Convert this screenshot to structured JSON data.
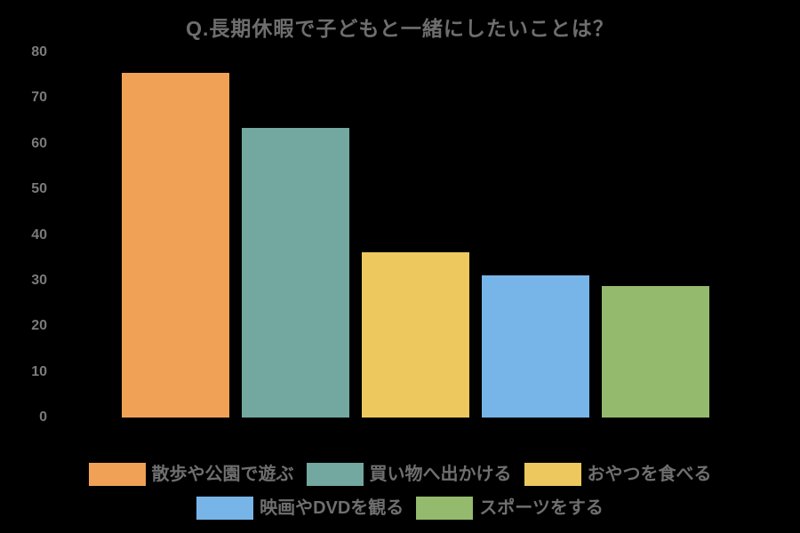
{
  "page": {
    "background_color": "#000000"
  },
  "chart_data": {
    "type": "bar",
    "title": "Q.長期休暇で子どもと一緒にしたいことは？",
    "categories": [
      "散歩や公園で遊ぶ",
      "買い物へ出かける",
      "おやつを食べる",
      "映画やDVDを観る",
      "スポーツをする"
    ],
    "values": [
      75.5,
      63.5,
      36.3,
      31.2,
      28.9
    ],
    "bar_colors": [
      "#f0a156",
      "#72a8a0",
      "#ecc85e",
      "#77b5e8",
      "#94ba6d"
    ],
    "xlabel": "",
    "ylabel": "",
    "ylim": [
      0,
      80
    ],
    "yticks": [
      0,
      10,
      20,
      30,
      40,
      50,
      60,
      70,
      80
    ],
    "grid": false,
    "legend_position": "bottom",
    "legend_row_split": [
      3,
      2
    ],
    "text_colors": {
      "title": "#6e6e6e",
      "tick_labels": "#7a7a7a",
      "legend_labels": "#6f6f6f"
    }
  }
}
